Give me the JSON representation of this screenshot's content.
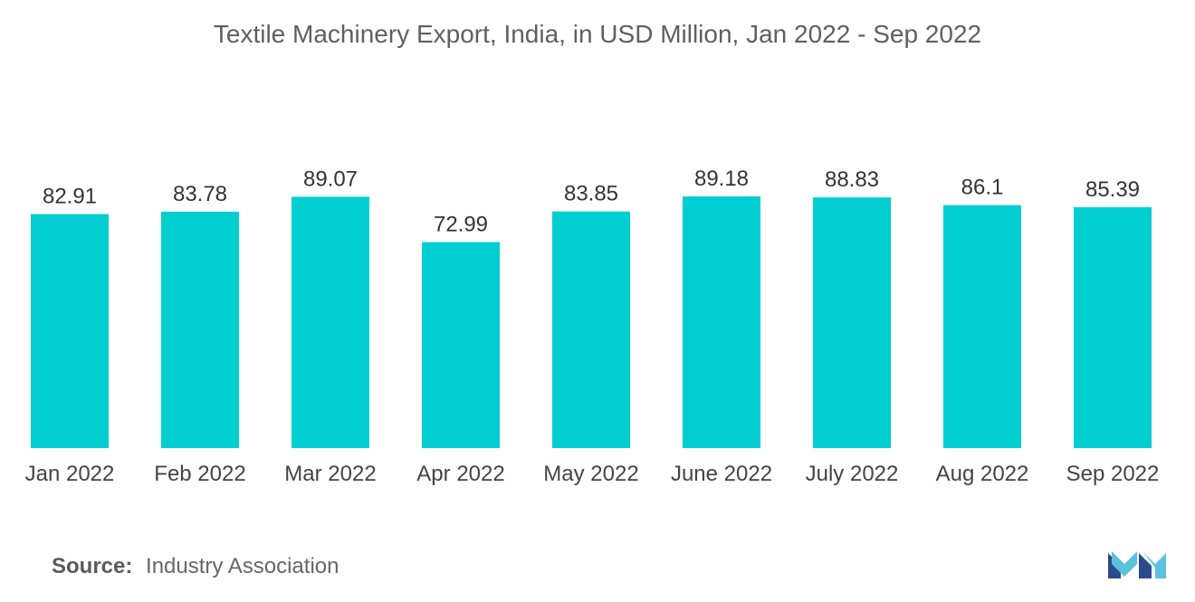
{
  "chart_data": {
    "type": "bar",
    "title": "Textile Machinery Export, India, in USD Million, Jan 2022 - Sep 2022",
    "categories": [
      "Jan 2022",
      "Feb 2022",
      "Mar 2022",
      "Apr 2022",
      "May 2022",
      "June 2022",
      "July 2022",
      "Aug 2022",
      "Sep 2022"
    ],
    "values": [
      82.91,
      83.78,
      89.07,
      72.99,
      83.85,
      89.18,
      88.83,
      86.1,
      85.39
    ],
    "value_labels": [
      "82.91",
      "83.78",
      "89.07",
      "72.99",
      "83.85",
      "89.18",
      "88.83",
      "86.1",
      "85.39"
    ],
    "xlabel": "",
    "ylabel": "",
    "ylim": [
      0,
      89.18
    ],
    "grid": false,
    "legend": "none",
    "bar_color": "#00CED1"
  },
  "source": {
    "label": "Source:",
    "text": "Industry Association"
  },
  "logo": {
    "icon": "mordor-intelligence-logo-icon",
    "colors": [
      "#2A4B8D",
      "#5BC0DE"
    ]
  }
}
